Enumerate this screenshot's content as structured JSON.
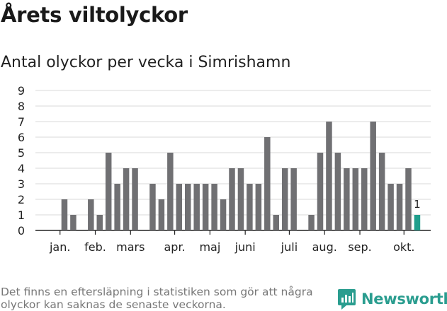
{
  "header": {
    "title": "Årets viltolyckor",
    "subtitle": "Antal olyckor per vecka i Simrishamn"
  },
  "footer": {
    "note": "Det finns en eftersläpning i statistiken som gör att några olyckor kan saknas de senaste veckorna.",
    "brand": "Newsworthy",
    "brand_icon": "newsworthy-logo-icon"
  },
  "colors": {
    "bar": "#707073",
    "highlight": "#1f9e8c",
    "grid": "#d9d9d9",
    "axis": "#222222",
    "brand": "#2a9d8f"
  },
  "chart_data": {
    "type": "bar",
    "title": "Antal olyckor per vecka i Simrishamn",
    "xlabel": "",
    "ylabel": "",
    "ylim": [
      0,
      9
    ],
    "yticks": [
      0,
      1,
      2,
      3,
      4,
      5,
      6,
      7,
      8,
      9
    ],
    "grid": true,
    "weeks": [
      1,
      2,
      3,
      4,
      5,
      6,
      7,
      8,
      9,
      10,
      11,
      12,
      13,
      14,
      15,
      16,
      17,
      18,
      19,
      20,
      21,
      22,
      23,
      24,
      25,
      26,
      27,
      28,
      29,
      30,
      31,
      32,
      33,
      34,
      35,
      36,
      37,
      38,
      39,
      40,
      41,
      42
    ],
    "values": [
      0,
      2,
      1,
      0,
      2,
      1,
      5,
      3,
      4,
      4,
      0,
      3,
      2,
      5,
      3,
      3,
      3,
      3,
      3,
      2,
      4,
      4,
      3,
      3,
      6,
      1,
      4,
      4,
      0,
      1,
      5,
      7,
      5,
      4,
      4,
      4,
      7,
      5,
      3,
      3,
      4,
      1
    ],
    "highlight_week": 42,
    "annotations": [
      {
        "week": 42,
        "text": "1"
      }
    ],
    "month_ticks": [
      {
        "label": "jan.",
        "week": 1.5
      },
      {
        "label": "feb.",
        "week": 5.5
      },
      {
        "label": "mars",
        "week": 9.5
      },
      {
        "label": "apr.",
        "week": 14.5
      },
      {
        "label": "maj",
        "week": 18.5
      },
      {
        "label": "juni",
        "week": 22.5
      },
      {
        "label": "juli",
        "week": 27.5
      },
      {
        "label": "aug.",
        "week": 31.5
      },
      {
        "label": "sep.",
        "week": 35.5
      },
      {
        "label": "okt.",
        "week": 40.5
      }
    ]
  }
}
